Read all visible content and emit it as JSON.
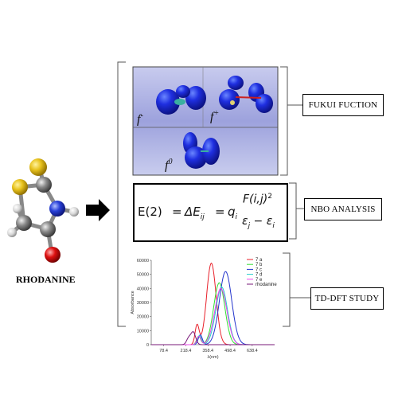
{
  "molecule": {
    "name": "RHODANINE"
  },
  "sections": {
    "fukui": "FUKUI FUCTION",
    "nbo": "NBO ANALYSIS",
    "tddft": "TD-DFT STUDY"
  },
  "fukui_labels": {
    "f_minus": "f",
    "f_minus_sup": "-",
    "f_plus": "f",
    "f_plus_sup": "+",
    "f_zero": "f",
    "f_zero_sup": "0"
  },
  "equation": {
    "lhs": "E(2)",
    "eq1": "=",
    "delta": "ΔE",
    "delta_sub": "ij",
    "eq2": "=",
    "q": "q",
    "q_sub": "i",
    "numerator": "F(i,j)",
    "numerator_sup": "2",
    "den_e1": "ε",
    "den_e1_sub": "j",
    "den_minus": "−",
    "den_e2": "ε",
    "den_e2_sub": "i"
  },
  "chart_data": {
    "type": "line",
    "xlabel": "λ(nm)",
    "ylabel": "Absorbance",
    "xlim": [
      0,
      780
    ],
    "ylim": [
      0,
      60000
    ],
    "x_ticks": [
      "78.4",
      "218.4",
      "358.4",
      "498.4",
      "638.4"
    ],
    "y_ticks": [
      "0",
      "10000",
      "20000",
      "30000",
      "40000",
      "50000",
      "60000"
    ],
    "series": [
      {
        "name": "7 a",
        "color": "#e8202a",
        "peak_x": 380,
        "peak_y": 58000,
        "width": 42,
        "shoulder_x": 290,
        "shoulder_y": 14000
      },
      {
        "name": "7 b",
        "color": "#33dd33",
        "peak_x": 430,
        "peak_y": 44000,
        "width": 50,
        "shoulder_x": 300,
        "shoulder_y": 6000
      },
      {
        "name": "7 c",
        "color": "#2233cc",
        "peak_x": 470,
        "peak_y": 52000,
        "width": 55,
        "shoulder_x": 310,
        "shoulder_y": 7000
      },
      {
        "name": "7 d",
        "color": "#22cccc",
        "peak_x": 445,
        "peak_y": 41000,
        "width": 52,
        "shoulder_x": 305,
        "shoulder_y": 6500
      },
      {
        "name": "7 e",
        "color": "#ee44ee",
        "peak_x": 440,
        "peak_y": 40000,
        "width": 54,
        "shoulder_x": 302,
        "shoulder_y": 6000
      },
      {
        "name": "rhodanine",
        "color": "#7a1a7a",
        "peak_x": 265,
        "peak_y": 9000,
        "width": 22,
        "shoulder_x": 235,
        "shoulder_y": 4000
      }
    ]
  }
}
